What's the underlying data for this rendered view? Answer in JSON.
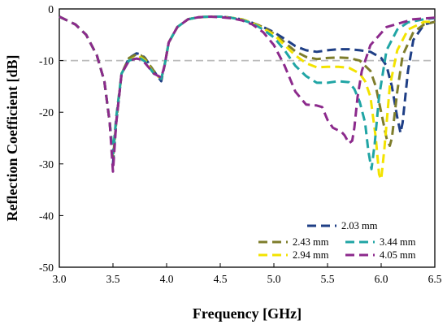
{
  "chart_data": {
    "type": "line",
    "title": "",
    "xlabel": "Frequency [GHz]",
    "ylabel": "Reflection Coefficient [dB]",
    "xlim": [
      3.0,
      6.5
    ],
    "ylim": [
      -50,
      0
    ],
    "x_ticks": [
      "3.0",
      "3.5",
      "4.0",
      "4.5",
      "5.0",
      "5.5",
      "6.0",
      "6.5"
    ],
    "y_ticks": [
      "0",
      "-10",
      "-20",
      "-30",
      "-40",
      "-50"
    ],
    "reference_line": {
      "y": -10,
      "color": "#bbbbbb",
      "style": "dashed"
    },
    "grid": false,
    "legend_position": "bottom-right",
    "series": [
      {
        "name": "2.03 mm",
        "color": "#1f3f86",
        "x": [
          3.0,
          3.15,
          3.25,
          3.35,
          3.42,
          3.47,
          3.5,
          3.53,
          3.58,
          3.65,
          3.72,
          3.76,
          3.8,
          3.88,
          3.95,
          3.98,
          4.02,
          4.1,
          4.2,
          4.3,
          4.4,
          4.5,
          4.6,
          4.7,
          4.8,
          4.9,
          5.0,
          5.1,
          5.2,
          5.3,
          5.4,
          5.5,
          5.6,
          5.7,
          5.8,
          5.9,
          6.0,
          6.05,
          6.1,
          6.15,
          6.18,
          6.2,
          6.25,
          6.3,
          6.4,
          6.5
        ],
        "y": [
          -1.5,
          -3.0,
          -5.0,
          -9.0,
          -14.0,
          -22.0,
          -30.0,
          -22.0,
          -12.5,
          -9.5,
          -8.6,
          -8.8,
          -9.5,
          -12.0,
          -14.0,
          -11.0,
          -6.5,
          -3.5,
          -2.0,
          -1.6,
          -1.5,
          -1.5,
          -1.7,
          -2.0,
          -2.7,
          -3.5,
          -4.5,
          -5.8,
          -7.2,
          -8.0,
          -8.3,
          -8.0,
          -7.8,
          -7.8,
          -8.0,
          -8.3,
          -9.5,
          -11.0,
          -15.0,
          -21.0,
          -24.0,
          -22.0,
          -12.0,
          -6.0,
          -3.0,
          -2.5
        ]
      },
      {
        "name": "2.43 mm",
        "color": "#7e7d2b",
        "x": [
          3.0,
          3.15,
          3.25,
          3.35,
          3.42,
          3.47,
          3.5,
          3.53,
          3.58,
          3.65,
          3.72,
          3.76,
          3.8,
          3.88,
          3.95,
          3.98,
          4.02,
          4.1,
          4.2,
          4.3,
          4.4,
          4.5,
          4.6,
          4.7,
          4.8,
          4.9,
          5.0,
          5.1,
          5.2,
          5.3,
          5.4,
          5.5,
          5.6,
          5.7,
          5.8,
          5.9,
          5.95,
          6.0,
          6.05,
          6.08,
          6.1,
          6.15,
          6.2,
          6.3,
          6.4,
          6.5
        ],
        "y": [
          -1.5,
          -3.0,
          -5.0,
          -9.0,
          -14.0,
          -22.0,
          -29.0,
          -22.0,
          -12.5,
          -9.5,
          -8.8,
          -9.0,
          -9.6,
          -12.0,
          -13.5,
          -11.0,
          -6.5,
          -3.5,
          -2.0,
          -1.6,
          -1.5,
          -1.5,
          -1.7,
          -2.0,
          -2.7,
          -3.5,
          -4.8,
          -6.5,
          -8.2,
          -9.3,
          -9.7,
          -9.5,
          -9.4,
          -9.5,
          -10.0,
          -12.0,
          -15.0,
          -20.0,
          -25.0,
          -26.5,
          -25.0,
          -16.0,
          -9.0,
          -4.5,
          -3.0,
          -2.5
        ]
      },
      {
        "name": "2.94 mm",
        "color": "#f3e300",
        "x": [
          3.0,
          3.15,
          3.25,
          3.35,
          3.42,
          3.47,
          3.5,
          3.53,
          3.58,
          3.65,
          3.72,
          3.76,
          3.8,
          3.88,
          3.95,
          3.98,
          4.02,
          4.1,
          4.2,
          4.3,
          4.4,
          4.5,
          4.6,
          4.7,
          4.8,
          4.9,
          5.0,
          5.1,
          5.2,
          5.3,
          5.4,
          5.5,
          5.6,
          5.7,
          5.8,
          5.85,
          5.9,
          5.95,
          5.98,
          6.0,
          6.03,
          6.08,
          6.15,
          6.25,
          6.4,
          6.5
        ],
        "y": [
          -1.5,
          -3.0,
          -5.0,
          -9.0,
          -14.0,
          -22.0,
          -28.0,
          -21.0,
          -12.5,
          -10.0,
          -9.2,
          -9.4,
          -10.0,
          -12.5,
          -13.5,
          -11.0,
          -6.5,
          -3.5,
          -2.0,
          -1.6,
          -1.5,
          -1.5,
          -1.7,
          -2.0,
          -2.7,
          -3.8,
          -5.0,
          -7.0,
          -9.0,
          -10.5,
          -11.3,
          -11.2,
          -11.2,
          -11.4,
          -12.5,
          -14.0,
          -17.0,
          -25.0,
          -32.0,
          -33.0,
          -27.0,
          -15.0,
          -8.0,
          -4.0,
          -2.5,
          -2.5
        ]
      },
      {
        "name": "3.44 mm",
        "color": "#20a5a5",
        "x": [
          3.0,
          3.15,
          3.25,
          3.35,
          3.42,
          3.47,
          3.5,
          3.53,
          3.58,
          3.65,
          3.72,
          3.76,
          3.8,
          3.88,
          3.95,
          3.98,
          4.02,
          4.1,
          4.2,
          4.3,
          4.4,
          4.5,
          4.6,
          4.7,
          4.8,
          4.9,
          5.0,
          5.1,
          5.2,
          5.3,
          5.4,
          5.5,
          5.6,
          5.7,
          5.75,
          5.8,
          5.85,
          5.88,
          5.91,
          5.94,
          5.98,
          6.05,
          6.15,
          6.25,
          6.4,
          6.5
        ],
        "y": [
          -1.5,
          -3.0,
          -5.0,
          -9.0,
          -14.0,
          -22.0,
          -28.0,
          -21.0,
          -12.5,
          -10.0,
          -9.5,
          -9.6,
          -10.2,
          -12.5,
          -13.5,
          -11.0,
          -6.5,
          -3.5,
          -2.0,
          -1.6,
          -1.5,
          -1.5,
          -1.7,
          -2.1,
          -2.8,
          -4.0,
          -5.5,
          -8.0,
          -11.0,
          -13.0,
          -14.3,
          -14.3,
          -14.0,
          -14.2,
          -15.5,
          -18.0,
          -22.0,
          -27.5,
          -31.0,
          -26.0,
          -17.0,
          -8.0,
          -4.0,
          -2.6,
          -2.0,
          -1.8
        ]
      },
      {
        "name": "4.05 mm",
        "color": "#8c2a8c",
        "x": [
          3.0,
          3.15,
          3.25,
          3.35,
          3.42,
          3.47,
          3.5,
          3.53,
          3.58,
          3.65,
          3.72,
          3.76,
          3.8,
          3.88,
          3.95,
          3.98,
          4.02,
          4.1,
          4.2,
          4.3,
          4.4,
          4.5,
          4.6,
          4.7,
          4.8,
          4.9,
          5.0,
          5.1,
          5.2,
          5.3,
          5.4,
          5.45,
          5.5,
          5.55,
          5.6,
          5.63,
          5.66,
          5.7,
          5.73,
          5.75,
          5.78,
          5.82,
          5.9,
          6.05,
          6.3,
          6.5
        ],
        "y": [
          -1.5,
          -3.0,
          -5.0,
          -9.0,
          -14.0,
          -22.0,
          -31.5,
          -22.0,
          -12.5,
          -10.0,
          -9.6,
          -9.8,
          -10.5,
          -12.5,
          -13.3,
          -11.0,
          -6.5,
          -3.5,
          -2.0,
          -1.6,
          -1.5,
          -1.6,
          -1.8,
          -2.2,
          -3.0,
          -4.5,
          -7.0,
          -11.0,
          -16.0,
          -18.5,
          -18.7,
          -19.0,
          -21.5,
          -23.0,
          -23.5,
          -23.8,
          -24.5,
          -26.0,
          -25.5,
          -23.0,
          -17.0,
          -12.0,
          -7.0,
          -3.5,
          -2.0,
          -1.7
        ]
      }
    ],
    "legend": [
      {
        "series": 0
      },
      {
        "series": 1
      },
      {
        "series": 3
      },
      {
        "series": 2
      },
      {
        "series": 4
      }
    ]
  }
}
